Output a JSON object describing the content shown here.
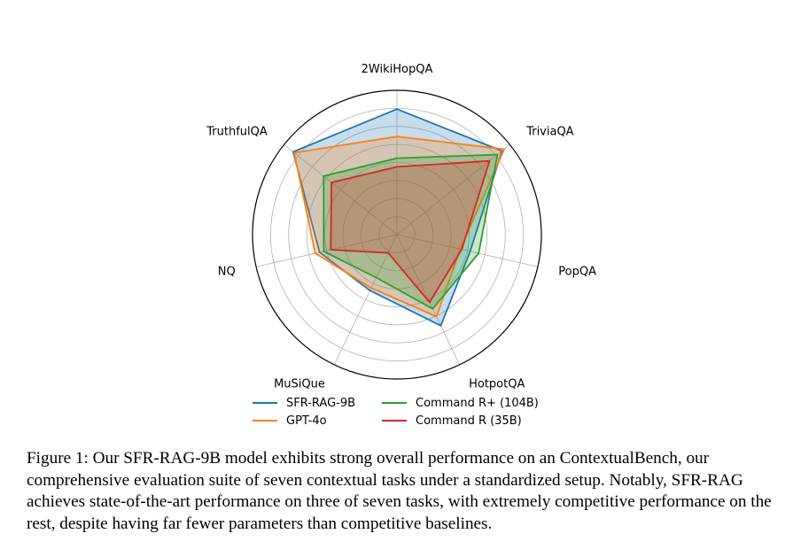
{
  "chart_data": {
    "type": "radar",
    "axes": [
      "2WikiHopQA",
      "TriviaQA",
      "PopQA",
      "HotpotQA",
      "MuSiQue",
      "NQ",
      "TruthfulQA"
    ],
    "rlim": [
      0,
      1
    ],
    "grid": true,
    "grid_levels": [
      0.125,
      0.25,
      0.375,
      0.5,
      0.625,
      0.75,
      0.875
    ],
    "series": [
      {
        "name": "SFR-RAG-9B",
        "color": "#1f77b4",
        "values": [
          0.87,
          0.93,
          0.52,
          0.7,
          0.43,
          0.55,
          0.92
        ]
      },
      {
        "name": "GPT-4o",
        "color": "#ff7f0e",
        "values": [
          0.68,
          0.95,
          0.45,
          0.63,
          0.41,
          0.58,
          0.91
        ]
      },
      {
        "name": "Command R+ (104B)",
        "color": "#2ca02c",
        "values": [
          0.53,
          0.89,
          0.58,
          0.57,
          0.33,
          0.52,
          0.65
        ]
      },
      {
        "name": "Command R (35B)",
        "color": "#d62728",
        "values": [
          0.47,
          0.82,
          0.46,
          0.52,
          0.14,
          0.47,
          0.58
        ]
      }
    ]
  },
  "caption": "Figure 1: Our SFR-RAG-9B model exhibits strong overall performance on an ContextualBench, our comprehensive evaluation suite of seven contextual tasks under a standardized setup. Notably, SFR-RAG achieves state-of-the-art performance on three of seven tasks, with extremely competitive performance on the rest, despite having far fewer parameters than competitive baselines."
}
